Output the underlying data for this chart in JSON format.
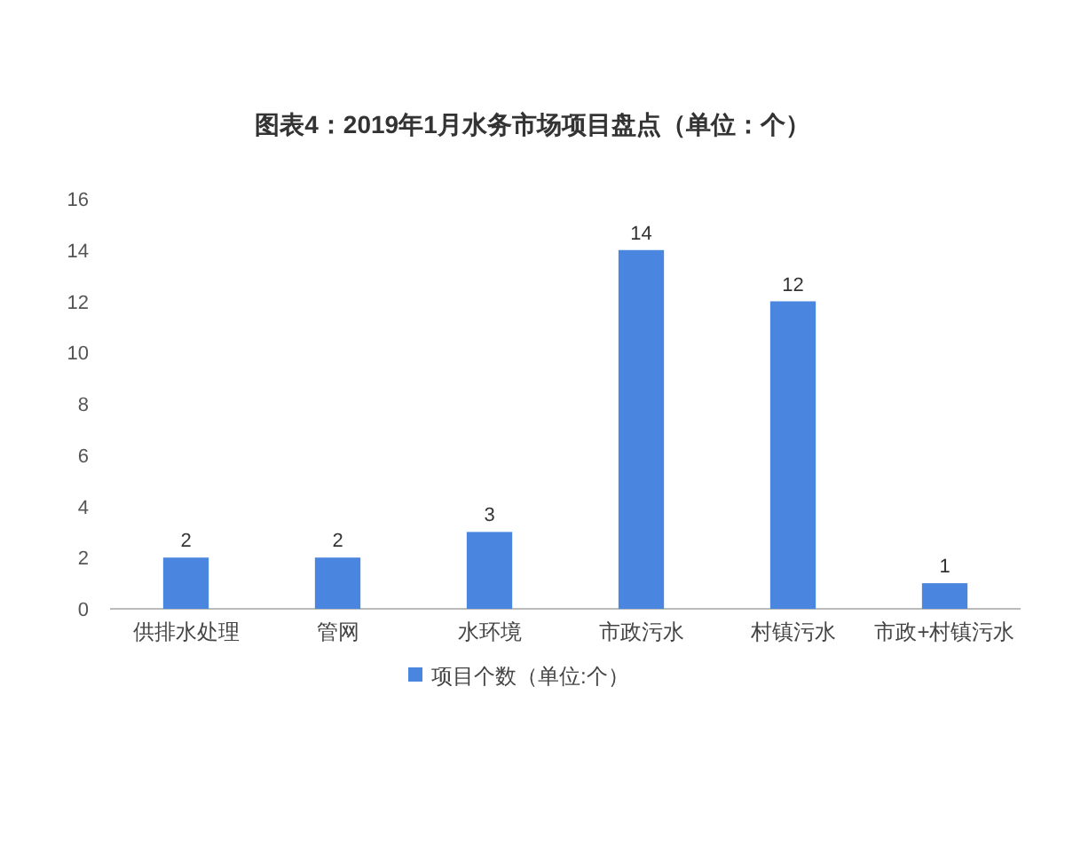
{
  "chart_data": {
    "type": "bar",
    "title": "图表4：2019年1月水务市场项目盘点（单位：个）",
    "categories": [
      "供排水处理",
      "管网",
      "水环境",
      "市政污水",
      "村镇污水",
      "市政+村镇污水"
    ],
    "series": [
      {
        "name": "项目个数（单位:个）",
        "color": "#4a86e0",
        "values": [
          2,
          2,
          3,
          14,
          12,
          1
        ]
      }
    ],
    "ylim": [
      0,
      16
    ],
    "yticks": [
      0,
      2,
      4,
      6,
      8,
      10,
      12,
      14,
      16
    ],
    "grid": false,
    "legend": "bottom",
    "data_labels": true
  }
}
